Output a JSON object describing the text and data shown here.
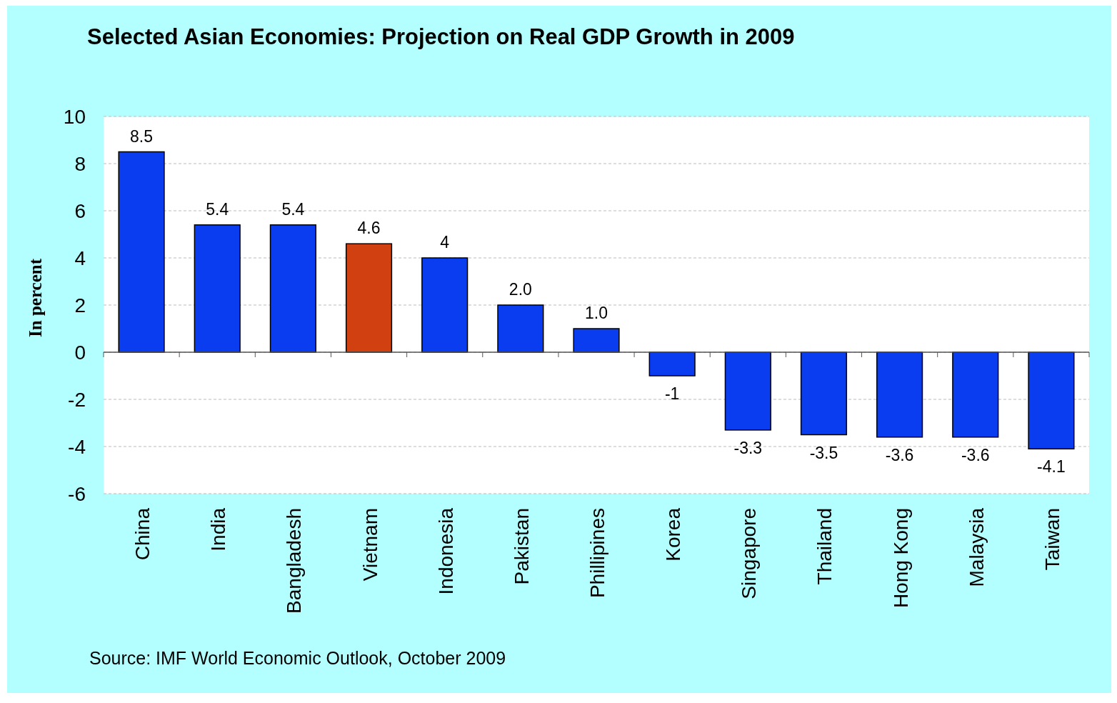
{
  "chart_data": {
    "type": "bar",
    "title": "Selected Asian Economies: Projection on Real GDP Growth in 2009",
    "ylabel": "In percent",
    "categories": [
      "China",
      "India",
      "Bangladesh",
      "Vietnam",
      "Indonesia",
      "Pakistan",
      "Phillipines",
      "Korea",
      "Singapore",
      "Thailand",
      "Hong Kong",
      "Malaysia",
      "Taiwan"
    ],
    "values": [
      8.5,
      5.4,
      5.4,
      4.6,
      4,
      2.0,
      1.0,
      -1,
      -3.3,
      -3.5,
      -3.6,
      -3.6,
      -4.1
    ],
    "value_labels": [
      "8.5",
      "5.4",
      "5.4",
      "4.6",
      "4",
      "2.0",
      "1.0",
      "-1",
      "-3.3",
      "-3.5",
      "-3.6",
      "-3.6",
      "-4.1"
    ],
    "colors": [
      "#0a3cf0",
      "#0a3cf0",
      "#0a3cf0",
      "#d04010",
      "#0a3cf0",
      "#0a3cf0",
      "#0a3cf0",
      "#0a3cf0",
      "#0a3cf0",
      "#0a3cf0",
      "#0a3cf0",
      "#0a3cf0",
      "#0a3cf0"
    ],
    "ylim": [
      -6,
      10
    ],
    "yticks": [
      -6,
      -4,
      -2,
      0,
      2,
      4,
      6,
      8,
      10
    ],
    "grid": "y",
    "annotations": [
      "Source: IMF World Economic Outlook, October 2009"
    ]
  }
}
